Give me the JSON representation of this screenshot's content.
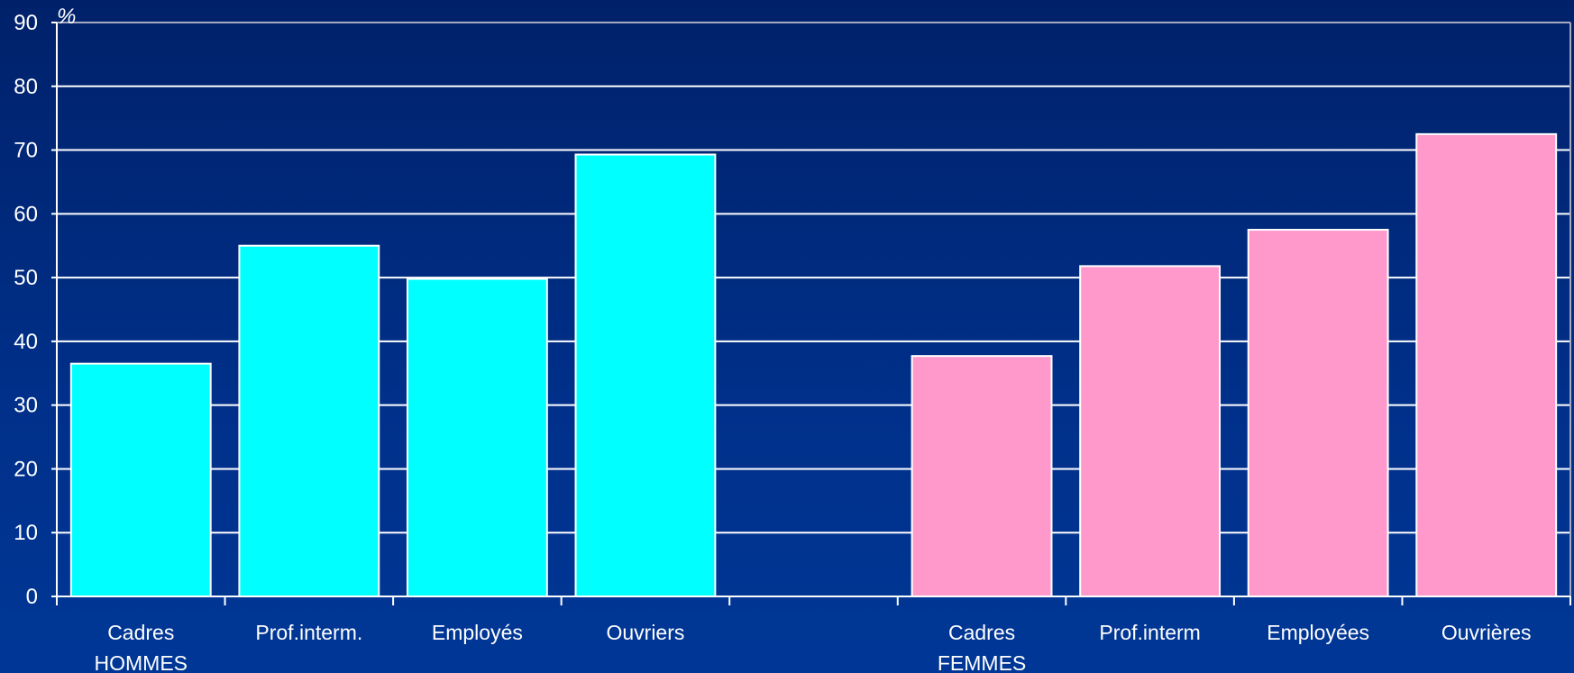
{
  "chart_data": {
    "type": "bar",
    "y_unit": "%",
    "ylim": [
      0,
      90
    ],
    "y_ticks": [
      0,
      10,
      20,
      30,
      40,
      50,
      60,
      70,
      80,
      90
    ],
    "grid": true,
    "legend": "none",
    "groups": [
      {
        "label": "HOMMES",
        "color": "#00ffff",
        "categories": [
          "Cadres",
          "Prof.interm.",
          "Employés",
          "Ouvriers"
        ],
        "values": [
          36.5,
          55,
          49.8,
          69.3
        ]
      },
      {
        "label": "FEMMES",
        "color": "#ff99cc",
        "categories": [
          "Cadres",
          "Prof.interm",
          "Employées",
          "Ouvrières"
        ],
        "values": [
          37.7,
          51.8,
          57.5,
          72.5
        ]
      }
    ]
  }
}
